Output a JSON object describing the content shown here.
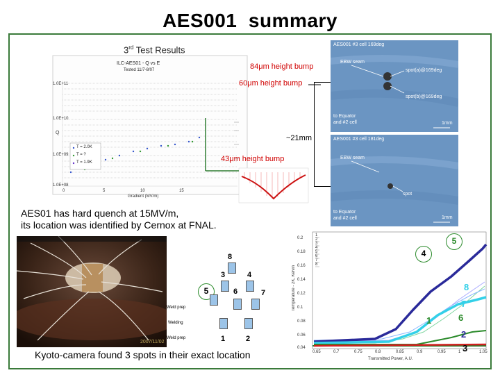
{
  "title": "AES001  summary",
  "results": {
    "heading_prefix": "3",
    "heading_sup": "rd",
    "heading_suffix": "Test Results",
    "chart_title": "ILC-AES01 - Q vs E",
    "chart_subtitle": "Tested 11/7-8/07",
    "y_label": "Q",
    "y_ticks": [
      "1.0E+11",
      "1.0E+10",
      "1.0E+09",
      "1.0E+08"
    ],
    "x_ticks": [
      "0",
      "5",
      "10",
      "15"
    ],
    "x_label": "Gradient (MV/m)",
    "legend": [
      "T = 2.0K",
      "T = ?",
      "T = 1.9K"
    ]
  },
  "labels": {
    "bump84": "84μm height bump",
    "bump60": "60μm height bump",
    "bump43": "43μm height bump",
    "distance": "~21mm"
  },
  "photo1": {
    "caption": "AES001 #3 cell 169deg",
    "ebw": "EBW seam",
    "spot_a": "spot(a)@169deg",
    "spot_b": "spot(b)@169deg",
    "equator_1": "to Equator",
    "equator_2": "and #2 cell",
    "scale": "1mm"
  },
  "photo2": {
    "caption": "AES001 #3 cell 181deg",
    "ebw": "EBW seam",
    "spot": "spot",
    "equator_1": "to Equator",
    "equator_2": "and #2 cell",
    "scale": "1mm"
  },
  "quench": {
    "line1": "AES01 has hard quench at 15MV/m,",
    "line2": "its location was identified by Cernox at FNAL."
  },
  "photo": {
    "date": "2007/11/02"
  },
  "cellmap": {
    "cells": [
      "8",
      "3",
      "4",
      "5",
      "6",
      "7",
      "1",
      "2"
    ],
    "weld_prep": "Weld prep",
    "welding": "Welding"
  },
  "temp": {
    "y_label": "Temperature - 2K, Kelvin",
    "y_ticks": [
      "0.2",
      "0.18",
      "0.16",
      "0.14",
      "0.12",
      "0.1",
      "0.08",
      "0.06",
      "0.04"
    ],
    "x_ticks": [
      "0.65",
      "0.7",
      "0.75",
      "0.8",
      "0.85",
      "0.9",
      "0.95",
      "1",
      "1.05"
    ],
    "x_label": "Transmitted Power, A.U.",
    "legend": [
      "1",
      "2",
      "3",
      "4",
      "5",
      "6",
      "7",
      "8"
    ],
    "trace_labels": [
      "5",
      "4",
      "8",
      "7",
      "6",
      "1",
      "2",
      "3"
    ]
  },
  "kyoto": "Kyoto-camera found 3 spots in their exact location"
}
